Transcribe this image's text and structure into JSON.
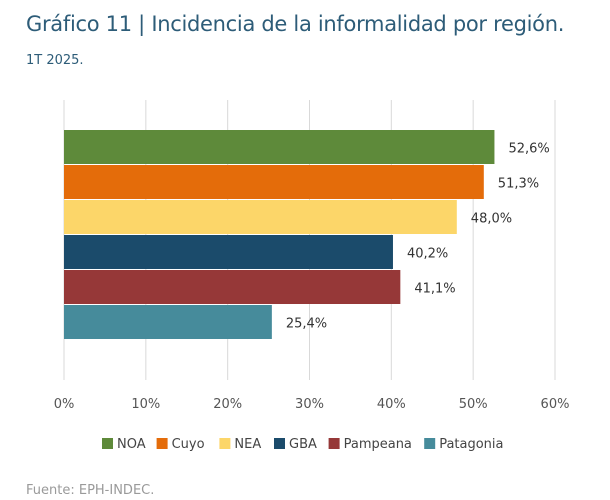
{
  "chart_data": {
    "type": "bar",
    "orientation": "horizontal",
    "title": "Gráfico 11 | Incidencia de la informalidad por región.",
    "subtitle": "1T 2025.",
    "categories": [
      "NOA",
      "Cuyo",
      "NEA",
      "GBA",
      "Pampeana",
      "Patagonia"
    ],
    "values": [
      52.6,
      51.3,
      48.0,
      40.2,
      41.1,
      25.4
    ],
    "value_labels": [
      "52,6%",
      "51,3%",
      "48,0%",
      "40,2%",
      "41,1%",
      "25,4%"
    ],
    "colors": [
      "#5e8a3a",
      "#e46c0a",
      "#fcd669",
      "#1b4b6b",
      "#963838",
      "#468b9b"
    ],
    "xlim": [
      0,
      60
    ],
    "xticks": [
      0,
      10,
      20,
      30,
      40,
      50,
      60
    ],
    "xtick_labels": [
      "0%",
      "10%",
      "20%",
      "30%",
      "40%",
      "50%",
      "60%"
    ],
    "grid": true,
    "legend_position": "bottom",
    "source": "Fuente: EPH-INDEC."
  }
}
